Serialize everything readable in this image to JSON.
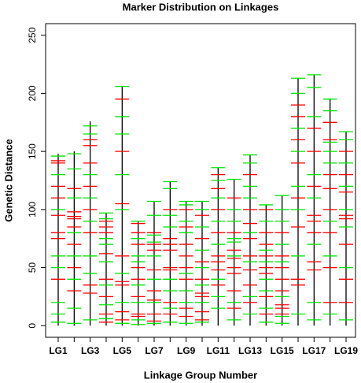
{
  "chart_data": {
    "type": "marker-map",
    "title": "Marker Distribution on Linkages",
    "x_label": "Linkage Group Number",
    "y_label": "Genetic Distance",
    "categories": [
      "LG1",
      null,
      "LG3",
      null,
      "LG5",
      null,
      "LG7",
      null,
      "LG9",
      null,
      "LG11",
      null,
      "LG13",
      null,
      "LG15",
      null,
      "LG17",
      null,
      "LG19"
    ],
    "values": [
      148,
      150,
      176,
      97,
      206,
      90,
      107,
      124,
      107,
      107,
      136,
      126,
      147,
      104,
      112,
      213,
      216,
      195,
      167
    ],
    "color": "#000000",
    "markers": [
      {
        "color": "#ff0000",
        "positions": [
          [
            140,
            142,
            120,
            110,
            95,
            80,
            75,
            40
          ],
          [
            118,
            98,
            94,
            92,
            85,
            70,
            50,
            30
          ],
          [
            160,
            155,
            140,
            120,
            100,
            80,
            35,
            28
          ],
          [
            90,
            85,
            80,
            62,
            40,
            25,
            10,
            3
          ],
          [
            195,
            150,
            105,
            60,
            38,
            35,
            12,
            5
          ],
          [
            88,
            80,
            70,
            50,
            40,
            25,
            10,
            8
          ],
          [
            80,
            70,
            65,
            48,
            30,
            22,
            10,
            4
          ],
          [
            100,
            75,
            70,
            65,
            50,
            48,
            20,
            10
          ],
          [
            100,
            85,
            70,
            60,
            50,
            40,
            15,
            8
          ],
          [
            95,
            75,
            55,
            40,
            28,
            25,
            12,
            5
          ],
          [
            130,
            118,
            100,
            80,
            60,
            55,
            48,
            35
          ],
          [
            110,
            80,
            65,
            58,
            50,
            45,
            30,
            15
          ],
          [
            130,
            100,
            88,
            75,
            60,
            48,
            35,
            20
          ],
          [
            100,
            80,
            70,
            60,
            50,
            45,
            25,
            10
          ],
          [
            80,
            60,
            50,
            40,
            30,
            18,
            15,
            10
          ],
          [
            190,
            180,
            160,
            140,
            110,
            85,
            40,
            35
          ],
          [
            170,
            150,
            120,
            95,
            90,
            80,
            55,
            48
          ],
          [
            175,
            160,
            130,
            118,
            100,
            80,
            50,
            20
          ],
          [
            150,
            130,
            115,
            95,
            92,
            70,
            40,
            20
          ]
        ]
      },
      {
        "color": "#00e600",
        "positions": [
          [
            146,
            130,
            100,
            60,
            50,
            20,
            10,
            3
          ],
          [
            148,
            135,
            110,
            80,
            60,
            40,
            15,
            2
          ],
          [
            172,
            165,
            130,
            110,
            90,
            60,
            45,
            5
          ],
          [
            97,
            92,
            75,
            70,
            55,
            35,
            18,
            6
          ],
          [
            206,
            180,
            165,
            130,
            100,
            45,
            20,
            2
          ],
          [
            90,
            75,
            60,
            55,
            35,
            20,
            5,
            1
          ],
          [
            107,
            95,
            78,
            72,
            60,
            40,
            20,
            2
          ],
          [
            124,
            118,
            95,
            85,
            40,
            30,
            15,
            3
          ],
          [
            107,
            104,
            90,
            80,
            45,
            30,
            20,
            2
          ],
          [
            107,
            100,
            85,
            65,
            50,
            35,
            20,
            3
          ],
          [
            136,
            125,
            110,
            90,
            70,
            40,
            25,
            15
          ],
          [
            126,
            100,
            90,
            75,
            72,
            60,
            20,
            5
          ],
          [
            147,
            140,
            120,
            110,
            80,
            55,
            25,
            10
          ],
          [
            104,
            90,
            65,
            55,
            40,
            30,
            15,
            3
          ],
          [
            112,
            100,
            90,
            70,
            55,
            25,
            8,
            2
          ],
          [
            213,
            200,
            170,
            150,
            120,
            100,
            60,
            10
          ],
          [
            216,
            205,
            180,
            130,
            110,
            70,
            20,
            5
          ],
          [
            195,
            185,
            158,
            150,
            140,
            90,
            60,
            10
          ],
          [
            167,
            160,
            140,
            120,
            100,
            85,
            50,
            5
          ]
        ]
      }
    ],
    "ylim": [
      -10,
      260
    ],
    "yticks": [
      0,
      50,
      100,
      150,
      200,
      250
    ]
  }
}
